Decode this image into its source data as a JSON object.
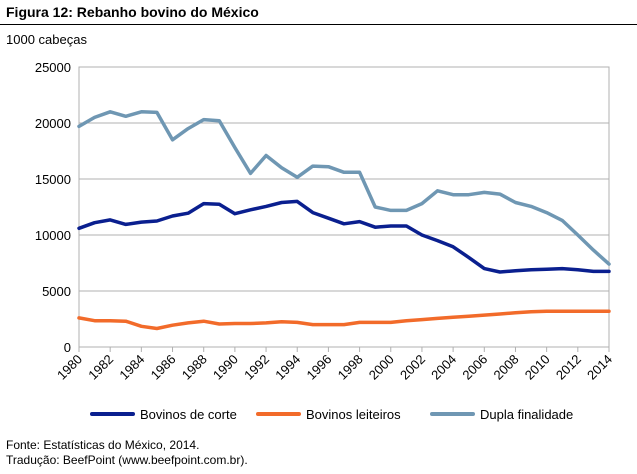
{
  "title": "Figura 12: Rebanho bovino do México",
  "source_line1": "Fonte: Estatísticas do México, 2014.",
  "source_line2": "Tradução: BeefPoint (www.beefpoint.com.br).",
  "chart_data": {
    "type": "line",
    "title": "Figura 12: Rebanho bovino do México",
    "ylabel": "1000 cabeças",
    "xlabel": "",
    "ylim": [
      0,
      25000
    ],
    "yticks": [
      0,
      5000,
      10000,
      15000,
      20000,
      25000
    ],
    "ytick_labels": [
      "0",
      "5000",
      "10000",
      "15000",
      "20000",
      "25000"
    ],
    "xticks": [
      1980,
      1982,
      1984,
      1986,
      1988,
      1990,
      1992,
      1994,
      1996,
      1998,
      2000,
      2002,
      2004,
      2006,
      2008,
      2010,
      2012,
      2014
    ],
    "xtick_labels": [
      "1980",
      "1982",
      "1984",
      "1986",
      "1988",
      "1990",
      "1992",
      "1994",
      "1996",
      "1998",
      "2000",
      "2002",
      "2004",
      "2006",
      "2008",
      "2010",
      "2012",
      "2014"
    ],
    "x": [
      1980,
      1981,
      1982,
      1983,
      1984,
      1985,
      1986,
      1987,
      1988,
      1989,
      1990,
      1991,
      1992,
      1993,
      1994,
      1995,
      1996,
      1997,
      1998,
      1999,
      2000,
      2001,
      2002,
      2003,
      2004,
      2005,
      2006,
      2007,
      2008,
      2009,
      2010,
      2011,
      2012,
      2013,
      2014
    ],
    "grid": "horizontal",
    "legend_position": "bottom",
    "series": [
      {
        "name": "Bovinos de corte",
        "color": "#0a1f8f",
        "values": [
          10600,
          11100,
          11350,
          10950,
          11150,
          11250,
          11700,
          11950,
          12800,
          12750,
          11900,
          12250,
          12550,
          12900,
          13000,
          12000,
          11500,
          11000,
          11200,
          10700,
          10800,
          10800,
          10000,
          9500,
          8950,
          8000,
          7000,
          6700,
          6800,
          6900,
          6950,
          7000,
          6900,
          6750,
          6750
        ]
      },
      {
        "name": "Bovinos leiteiros",
        "color": "#f26b2a",
        "values": [
          2600,
          2350,
          2350,
          2300,
          1850,
          1650,
          1950,
          2150,
          2300,
          2050,
          2100,
          2100,
          2150,
          2250,
          2200,
          2000,
          2000,
          2000,
          2200,
          2200,
          2200,
          2350,
          2450,
          2550,
          2650,
          2750,
          2850,
          2950,
          3050,
          3150,
          3200,
          3200,
          3200,
          3200,
          3200
        ]
      },
      {
        "name": "Dupla finalidade",
        "color": "#6f97b3",
        "values": [
          19700,
          20500,
          21000,
          20600,
          21000,
          20950,
          18500,
          19500,
          20300,
          20200,
          17800,
          15500,
          17100,
          16000,
          15150,
          16150,
          16100,
          15600,
          15600,
          12500,
          12200,
          12200,
          12800,
          13950,
          13600,
          13600,
          13800,
          13650,
          12900,
          12550,
          12000,
          11300,
          10000,
          8650,
          7400
        ]
      }
    ]
  }
}
